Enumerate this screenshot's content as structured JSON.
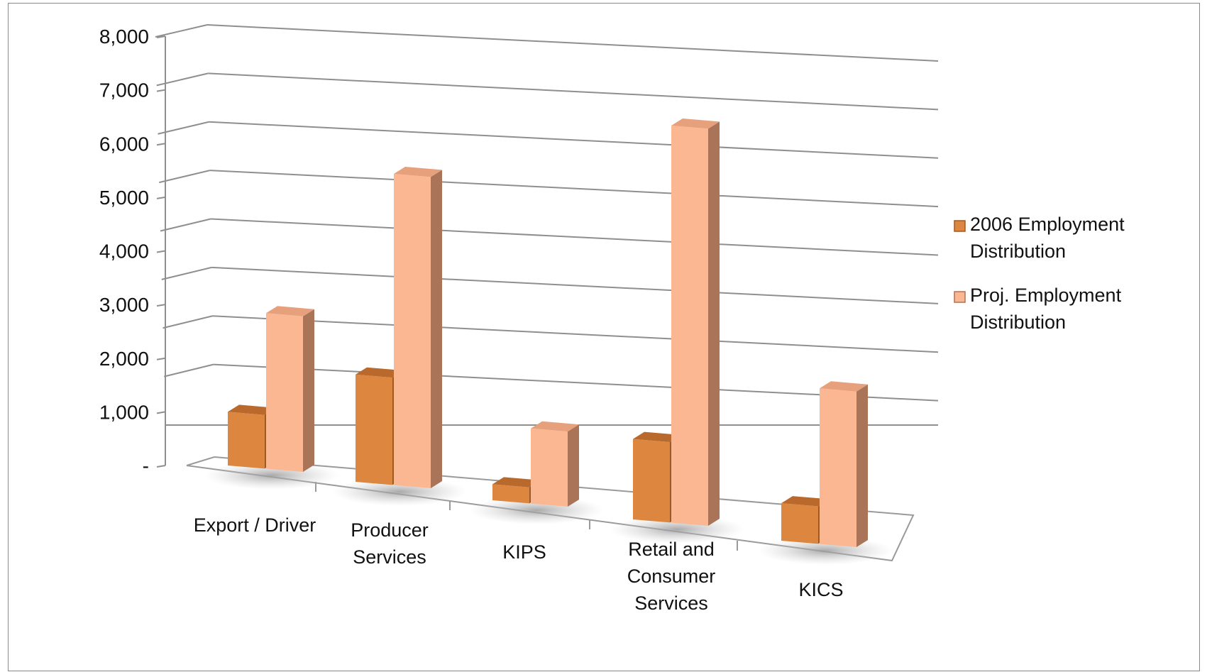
{
  "chart_data": {
    "type": "bar",
    "style": "3d-clustered-column",
    "categories": [
      [
        "Export / Driver"
      ],
      [
        "Producer",
        "Services"
      ],
      [
        "KIPS"
      ],
      [
        "Retail and",
        "Consumer",
        "Services"
      ],
      [
        "KICS"
      ]
    ],
    "series": [
      {
        "name": [
          "2006 Employment",
          "Distribution"
        ],
        "values": [
          1000,
          2000,
          300,
          1500,
          700
        ],
        "colors": {
          "front": "#dd8640",
          "top": "#b9692c",
          "side": "#9b5a2a"
        }
      },
      {
        "name": [
          "Proj. Employment",
          "Distribution"
        ],
        "values": [
          2900,
          5800,
          1400,
          7400,
          2900
        ],
        "colors": {
          "front": "#fbb792",
          "top": "#e6a07c",
          "side": "#a97458"
        }
      }
    ],
    "yticks": [
      "-",
      "1,000",
      "2,000",
      "3,000",
      "4,000",
      "5,000",
      "6,000",
      "7,000",
      "8,000"
    ],
    "ylim": [
      0,
      8000
    ],
    "grid": true,
    "legend": "right",
    "title": "",
    "xlabel": "",
    "ylabel": ""
  }
}
